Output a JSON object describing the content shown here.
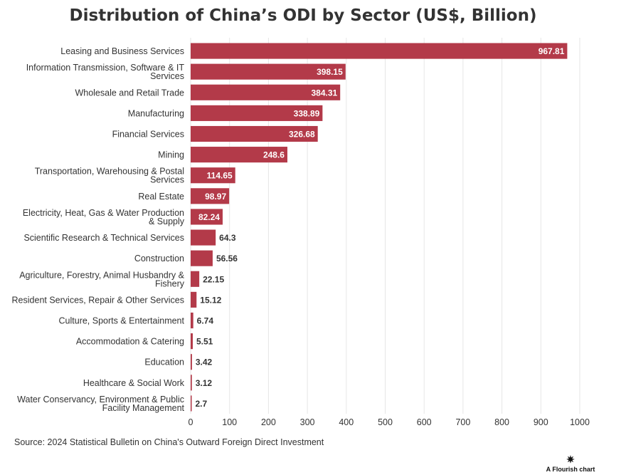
{
  "chart_data": {
    "type": "bar",
    "orientation": "horizontal",
    "title": "Distribution of China’s ODI by Sector (US$, Billion)",
    "categories": [
      "Leasing and Business Services",
      "Information Transmission, Software & IT Services",
      "Wholesale and Retail Trade",
      "Manufacturing",
      "Financial Services",
      "Mining",
      "Transportation, Warehousing & Postal Services",
      "Real Estate",
      "Electricity, Heat, Gas & Water Production & Supply",
      "Scientific Research & Technical Services",
      "Construction",
      "Agriculture, Forestry, Animal Husbandry & Fishery",
      "Resident Services, Repair & Other Services",
      "Culture, Sports & Entertainment",
      "Accommodation & Catering",
      "Education",
      "Healthcare & Social Work",
      "Water Conservancy, Environment & Public Facility Management"
    ],
    "values": [
      967.81,
      398.15,
      384.31,
      338.89,
      326.68,
      248.6,
      114.65,
      98.97,
      82.24,
      64.3,
      56.56,
      22.15,
      15.12,
      6.74,
      5.51,
      3.42,
      3.12,
      2.7
    ],
    "value_labels": [
      "967.81",
      "398.15",
      "384.31",
      "338.89",
      "326.68",
      "248.6",
      "114.65",
      "98.97",
      "82.24",
      "64.3",
      "56.56",
      "22.15",
      "15.12",
      "6.74",
      "5.51",
      "3.42",
      "3.12",
      "2.7"
    ],
    "xlim": [
      0,
      1000
    ],
    "x_ticks": [
      "0",
      "100",
      "200",
      "300",
      "400",
      "500",
      "600",
      "700",
      "800",
      "900",
      "1000"
    ],
    "xlabel": "",
    "ylabel": "",
    "grid": true,
    "bar_color": "#b33a49",
    "gridline_color": "#e6e6e6",
    "source": "Source: 2024 Statistical Bulletin on China's Outward Foreign Direct Investment"
  },
  "credit": {
    "icon": "asterisk-icon",
    "text": "A Flourish chart"
  }
}
